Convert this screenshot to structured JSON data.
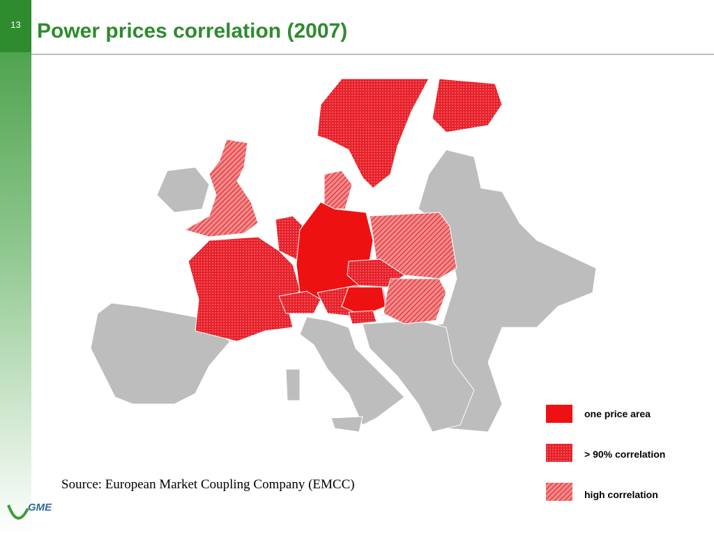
{
  "slide_number": "13",
  "title": "Power prices correlation (2007)",
  "legend": [
    "one price area",
    "> 90% correlation",
    "high correlation"
  ],
  "source": "Source: European Market Coupling Company (EMCC)",
  "logo": "GME"
}
